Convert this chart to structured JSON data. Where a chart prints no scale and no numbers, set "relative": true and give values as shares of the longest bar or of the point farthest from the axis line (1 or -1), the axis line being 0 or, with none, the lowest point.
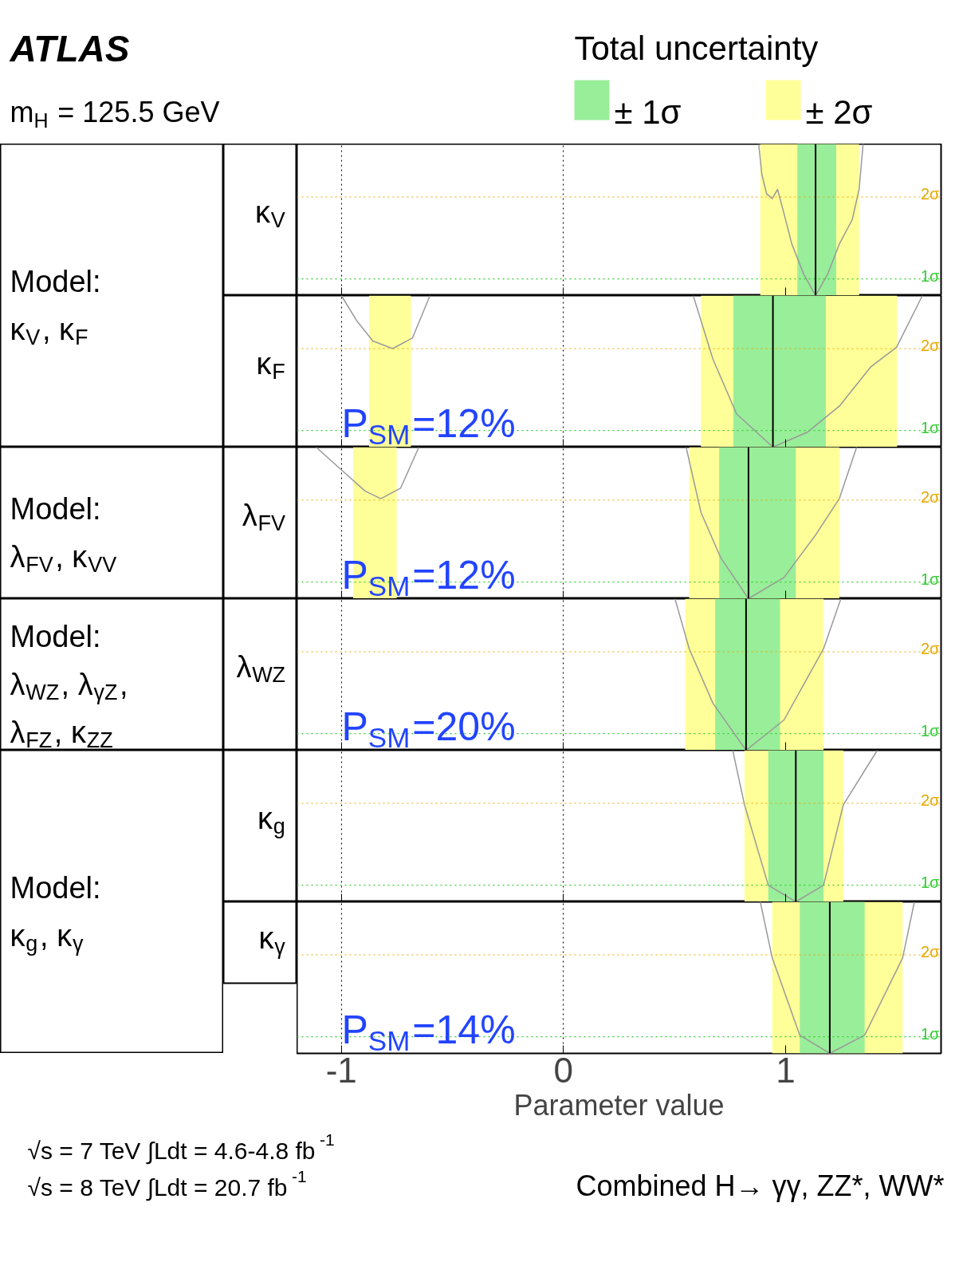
{
  "chart_data": [
    {
      "type": "other",
      "title": "ATLAS",
      "subtitle": "m$_{H}$ = 125.5 GeV"
    },
    {
      "type": "other",
      "annotations": [
        "Model:",
        "κ$_{V}$, κ$_{F}$"
      ]
    },
    {
      "type": "line",
      "legend_title": "Total uncertainty",
      "legend": "top right",
      "ylabel": "κ$_{V}$",
      "relative": true,
      "xlim": [
        -1.2,
        1.7
      ],
      "xticks": [
        -1,
        0,
        1
      ],
      "tick_labels": false,
      "grid": "x",
      "x": [
        0.879,
        0.893,
        0.915,
        0.94,
        0.964,
        0.993,
        1.028,
        1.082,
        1.135,
        1.189,
        1.242,
        1.3,
        1.331,
        1.349
      ],
      "series": [
        {
          "color": "#999999",
          "values": [
            1.0,
            0.8,
            0.67,
            0.64,
            0.7,
            0.54,
            0.34,
            0.14,
            0,
            0.14,
            0.34,
            0.5,
            0.7,
            1.0
          ]
        }
      ],
      "bands": [
        {
          "axis": "x",
          "from": 0.886,
          "to": 1.331,
          "color": "#ffff99",
          "label": "± 2σ"
        },
        {
          "axis": "x",
          "from": 1.053,
          "to": 1.228,
          "color": "#99ee99",
          "label": "± 1σ"
        }
      ],
      "ref_lines": [
        {
          "axis": "y",
          "value": 0.11,
          "label": "1σ",
          "color": "#33cc33",
          "line_style": "dotted"
        },
        {
          "axis": "y",
          "value": 0.65,
          "label": "2σ",
          "color": "#e6a800",
          "line_style": "dotted"
        },
        {
          "axis": "x",
          "value": 1.135,
          "color": "#000000",
          "line_style": "solid"
        }
      ]
    },
    {
      "type": "line",
      "ylabel": "κ$_{F}$",
      "relative": true,
      "xlim": [
        -1.2,
        1.7
      ],
      "xticks": [
        -1,
        0,
        1
      ],
      "tick_labels": false,
      "grid": "x",
      "series": [
        {
          "color": "#999999",
          "x": [
            -1.0,
            -0.929,
            -0.858,
            -0.769,
            -0.68,
            -0.601
          ],
          "values": [
            1.0,
            0.83,
            0.7,
            0.65,
            0.72,
            1.0
          ]
        },
        {
          "color": "#999999",
          "x": [
            0.584,
            0.673,
            0.779,
            0.943,
            1.1,
            1.242,
            1.384,
            1.5,
            1.616
          ],
          "values": [
            1.0,
            0.58,
            0.22,
            0,
            0.1,
            0.27,
            0.53,
            0.66,
            1.0
          ]
        }
      ],
      "bands": [
        {
          "axis": "x",
          "from": -0.875,
          "to": -0.687,
          "color": "#ffff99"
        },
        {
          "axis": "x",
          "from": 0.619,
          "to": 1.502,
          "color": "#ffff99"
        },
        {
          "axis": "x",
          "from": 0.765,
          "to": 1.181,
          "color": "#99ee99"
        }
      ],
      "ref_lines": [
        {
          "axis": "y",
          "value": 0.11,
          "label": "1σ",
          "color": "#33cc33",
          "line_style": "dotted"
        },
        {
          "axis": "y",
          "value": 0.65,
          "label": "2σ",
          "color": "#e6a800",
          "line_style": "dotted"
        },
        {
          "axis": "x",
          "value": 0.943,
          "color": "#000000",
          "line_style": "solid"
        }
      ],
      "annotations": [
        "P$_{SM}$=12%"
      ]
    },
    {
      "type": "other",
      "annotations": [
        "Model:",
        "λ$_{FV}$, κ$_{VV}$"
      ]
    },
    {
      "type": "line",
      "ylabel": "λ$_{FV}$",
      "relative": true,
      "xlim": [
        -1.2,
        1.7
      ],
      "xticks": [
        -1,
        0,
        1
      ],
      "tick_labels": false,
      "grid": "x",
      "series": [
        {
          "color": "#999999",
          "x": [
            -1.114,
            -1.0,
            -0.893,
            -0.822,
            -0.733,
            -0.651
          ],
          "values": [
            1.0,
            0.85,
            0.71,
            0.66,
            0.73,
            1.0
          ]
        },
        {
          "color": "#999999",
          "x": [
            0.552,
            0.619,
            0.708,
            0.833,
            0.993,
            1.135,
            1.242,
            1.32
          ],
          "values": [
            1.0,
            0.57,
            0.27,
            0,
            0.14,
            0.42,
            0.66,
            1.0
          ]
        }
      ],
      "bands": [
        {
          "axis": "x",
          "from": -0.947,
          "to": -0.751,
          "color": "#ffff99"
        },
        {
          "axis": "x",
          "from": 0.566,
          "to": 1.242,
          "color": "#ffff99"
        },
        {
          "axis": "x",
          "from": 0.701,
          "to": 1.046,
          "color": "#99ee99"
        }
      ],
      "ref_lines": [
        {
          "axis": "y",
          "value": 0.11,
          "label": "1σ",
          "color": "#33cc33",
          "line_style": "dotted"
        },
        {
          "axis": "y",
          "value": 0.65,
          "label": "2σ",
          "color": "#e6a800",
          "line_style": "dotted"
        },
        {
          "axis": "x",
          "value": 0.833,
          "color": "#000000",
          "line_style": "solid"
        }
      ],
      "annotations": [
        "P$_{SM}$=12%"
      ]
    },
    {
      "type": "other",
      "annotations": [
        "Model:",
        "λ$_{WZ}$, λ$_{γZ}$,",
        "λ$_{FZ}$, κ$_{ZZ}$"
      ]
    },
    {
      "type": "line",
      "ylabel": "λ$_{WZ}$",
      "relative": true,
      "xlim": [
        -1.2,
        1.7
      ],
      "xticks": [
        -1,
        0,
        1
      ],
      "tick_labels": false,
      "grid": "x",
      "x": [
        0.502,
        0.566,
        0.673,
        0.822,
        0.993,
        1.171,
        1.249
      ],
      "series": [
        {
          "color": "#999999",
          "values": [
            1.0,
            0.67,
            0.31,
            0,
            0.2,
            0.67,
            1.0
          ]
        }
      ],
      "bands": [
        {
          "axis": "x",
          "from": 0.548,
          "to": 1.171,
          "color": "#ffff99"
        },
        {
          "axis": "x",
          "from": 0.683,
          "to": 0.975,
          "color": "#99ee99"
        }
      ],
      "ref_lines": [
        {
          "axis": "y",
          "value": 0.11,
          "label": "1σ",
          "color": "#33cc33",
          "line_style": "dotted"
        },
        {
          "axis": "y",
          "value": 0.65,
          "label": "2σ",
          "color": "#e6a800",
          "line_style": "dotted"
        },
        {
          "axis": "x",
          "value": 0.822,
          "color": "#000000",
          "line_style": "solid"
        }
      ],
      "annotations": [
        "P$_{SM}$=20%"
      ]
    },
    {
      "type": "other",
      "annotations": [
        "Model:",
        "κ$_{g}$, κ$_{γ}$"
      ]
    },
    {
      "type": "line",
      "ylabel": "κ$_{g}$",
      "relative": true,
      "xlim": [
        -1.2,
        1.7
      ],
      "xticks": [
        -1,
        0,
        1
      ],
      "tick_labels": false,
      "grid": "x",
      "x": [
        0.762,
        0.815,
        0.922,
        1.046,
        1.171,
        1.26,
        1.413
      ],
      "series": [
        {
          "color": "#999999",
          "values": [
            1.0,
            0.64,
            0.11,
            0,
            0.11,
            0.64,
            1.0
          ]
        }
      ],
      "bands": [
        {
          "axis": "x",
          "from": 0.815,
          "to": 1.26,
          "color": "#ffff99"
        },
        {
          "axis": "x",
          "from": 0.922,
          "to": 1.171,
          "color": "#99ee99"
        }
      ],
      "ref_lines": [
        {
          "axis": "y",
          "value": 0.11,
          "label": "1σ",
          "color": "#33cc33",
          "line_style": "dotted"
        },
        {
          "axis": "y",
          "value": 0.65,
          "label": "2σ",
          "color": "#e6a800",
          "line_style": "dotted"
        },
        {
          "axis": "x",
          "value": 1.046,
          "color": "#000000",
          "line_style": "solid"
        }
      ]
    },
    {
      "type": "line",
      "ylabel": "κ$_{γ}$",
      "xlabel": "Parameter value",
      "relative": true,
      "xlim": [
        -1.2,
        1.7
      ],
      "xticks": [
        -1,
        0,
        1
      ],
      "tick_labels": "x",
      "grid": "x",
      "x": [
        0.886,
        0.94,
        1.064,
        1.199,
        1.356,
        1.527,
        1.58
      ],
      "series": [
        {
          "color": "#999999",
          "values": [
            1.0,
            0.63,
            0.12,
            0,
            0.12,
            0.63,
            1.0
          ]
        }
      ],
      "bands": [
        {
          "axis": "x",
          "from": 0.94,
          "to": 1.527,
          "color": "#ffff99"
        },
        {
          "axis": "x",
          "from": 1.064,
          "to": 1.356,
          "color": "#99ee99"
        }
      ],
      "ref_lines": [
        {
          "axis": "y",
          "value": 0.11,
          "label": "1σ",
          "color": "#33cc33",
          "line_style": "dotted"
        },
        {
          "axis": "y",
          "value": 0.65,
          "label": "2σ",
          "color": "#e6a800",
          "line_style": "dotted"
        },
        {
          "axis": "x",
          "value": 1.199,
          "color": "#000000",
          "line_style": "solid"
        }
      ],
      "annotations": [
        "P$_{SM}$=14%"
      ]
    },
    {
      "type": "other",
      "annotations": [
        "√s = 7 TeV ∫Ldt = 4.6-4.8 fb$^{-1}$",
        "√s = 8 TeV ∫Ldt = 20.7 fb$^{-1}$",
        "Combined H→ γγ, ZZ*, WW*"
      ]
    }
  ]
}
